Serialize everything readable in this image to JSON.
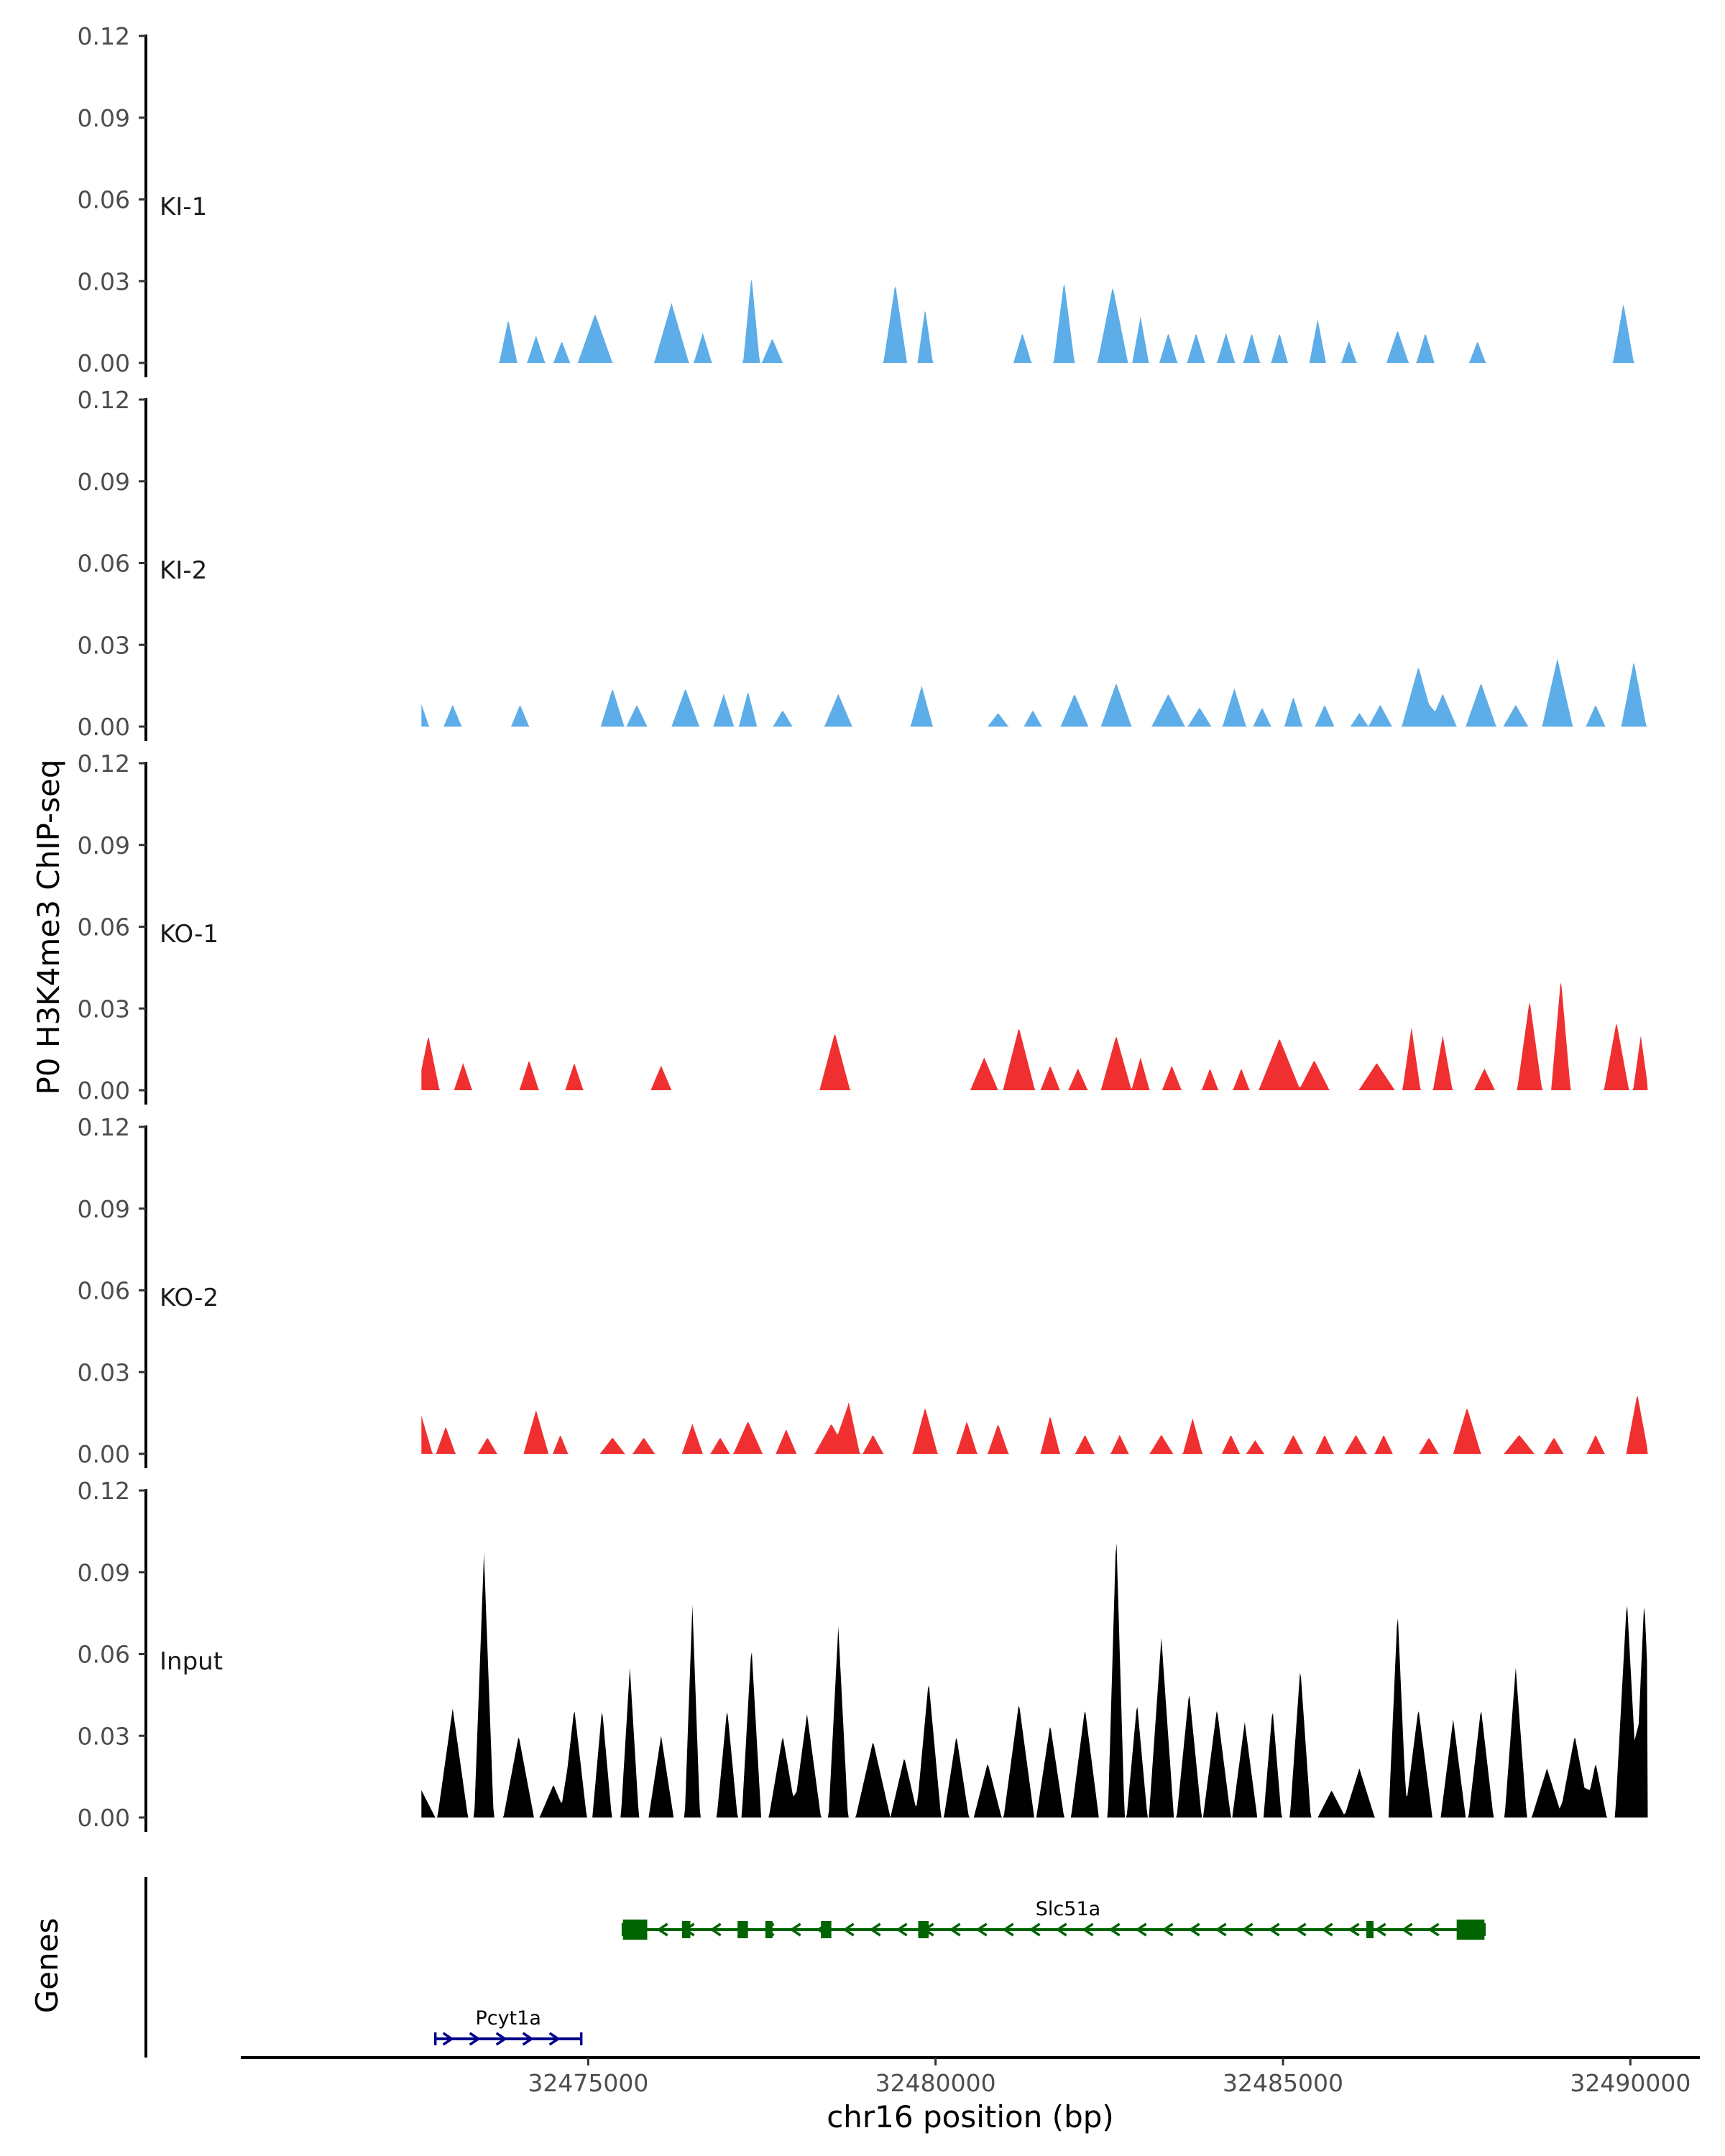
{
  "chart_data": {
    "type": "area",
    "title": "",
    "ylabel": "P0 H3K4me3 ChIP-seq",
    "xlabel": "chr16 position (bp)",
    "genes_label": "Genes",
    "xlim": [
      32470000,
      32491000
    ],
    "ylim": [
      0,
      0.12
    ],
    "y_ticks": [
      "0.00",
      "0.03",
      "0.06",
      "0.09",
      "0.12"
    ],
    "x_ticks": [
      {
        "label": "32475000",
        "value": 32475000
      },
      {
        "label": "32480000",
        "value": 32480000
      },
      {
        "label": "32485000",
        "value": 32485000
      },
      {
        "label": "32490000",
        "value": 32490000
      }
    ],
    "series": [
      {
        "name": "KI-1",
        "color": "#5dade8",
        "peaks": [
          [
            32473850,
            0.016,
            130
          ],
          [
            32474250,
            0.01,
            130
          ],
          [
            32474620,
            0.008,
            120
          ],
          [
            32475100,
            0.018,
            250
          ],
          [
            32476200,
            0.022,
            250
          ],
          [
            32476650,
            0.011,
            130
          ],
          [
            32477350,
            0.032,
            120
          ],
          [
            32477650,
            0.009,
            150
          ],
          [
            32479420,
            0.029,
            170
          ],
          [
            32479850,
            0.02,
            110
          ],
          [
            32481250,
            0.011,
            130
          ],
          [
            32481850,
            0.03,
            150
          ],
          [
            32482550,
            0.028,
            220
          ],
          [
            32482950,
            0.017,
            120
          ],
          [
            32483350,
            0.011,
            130
          ],
          [
            32483750,
            0.011,
            130
          ],
          [
            32484180,
            0.011,
            130
          ],
          [
            32484550,
            0.011,
            120
          ],
          [
            32484950,
            0.011,
            120
          ],
          [
            32485500,
            0.016,
            120
          ],
          [
            32485950,
            0.008,
            110
          ],
          [
            32486650,
            0.012,
            160
          ],
          [
            32487050,
            0.011,
            130
          ],
          [
            32487800,
            0.008,
            120
          ],
          [
            32489900,
            0.022,
            150
          ]
        ]
      },
      {
        "name": "KI-2",
        "color": "#5dade8",
        "peaks": [
          [
            32472550,
            0.012,
            160
          ],
          [
            32473050,
            0.008,
            130
          ],
          [
            32474020,
            0.008,
            130
          ],
          [
            32475350,
            0.014,
            170
          ],
          [
            32475700,
            0.008,
            150
          ],
          [
            32476400,
            0.014,
            200
          ],
          [
            32476950,
            0.012,
            150
          ],
          [
            32477300,
            0.013,
            130
          ],
          [
            32477800,
            0.006,
            140
          ],
          [
            32478600,
            0.012,
            200
          ],
          [
            32479800,
            0.015,
            160
          ],
          [
            32480900,
            0.005,
            150
          ],
          [
            32481400,
            0.006,
            130
          ],
          [
            32482000,
            0.012,
            200
          ],
          [
            32482600,
            0.016,
            220
          ],
          [
            32483350,
            0.012,
            240
          ],
          [
            32483800,
            0.007,
            170
          ],
          [
            32484300,
            0.014,
            170
          ],
          [
            32484700,
            0.007,
            130
          ],
          [
            32485150,
            0.011,
            130
          ],
          [
            32485600,
            0.008,
            140
          ],
          [
            32486100,
            0.005,
            130
          ],
          [
            32486400,
            0.008,
            170
          ],
          [
            32486950,
            0.022,
            240
          ],
          [
            32487300,
            0.012,
            200
          ],
          [
            32487850,
            0.016,
            220
          ],
          [
            32488350,
            0.008,
            180
          ],
          [
            32488950,
            0.025,
            220
          ],
          [
            32489500,
            0.008,
            140
          ],
          [
            32490050,
            0.024,
            180
          ]
        ]
      },
      {
        "name": "KO-1",
        "color": "#f03030",
        "peaks": [
          [
            32472700,
            0.02,
            160
          ],
          [
            32473200,
            0.01,
            130
          ],
          [
            32474150,
            0.011,
            140
          ],
          [
            32474800,
            0.01,
            130
          ],
          [
            32476050,
            0.009,
            150
          ],
          [
            32478550,
            0.021,
            220
          ],
          [
            32480700,
            0.012,
            200
          ],
          [
            32481200,
            0.023,
            230
          ],
          [
            32481650,
            0.009,
            140
          ],
          [
            32482050,
            0.008,
            140
          ],
          [
            32482600,
            0.02,
            220
          ],
          [
            32482950,
            0.012,
            130
          ],
          [
            32483400,
            0.009,
            140
          ],
          [
            32483950,
            0.008,
            120
          ],
          [
            32484400,
            0.008,
            120
          ],
          [
            32484950,
            0.019,
            300
          ],
          [
            32485450,
            0.011,
            220
          ],
          [
            32486350,
            0.01,
            260
          ],
          [
            32486850,
            0.023,
            130
          ],
          [
            32487300,
            0.02,
            140
          ],
          [
            32487900,
            0.008,
            150
          ],
          [
            32488550,
            0.033,
            180
          ],
          [
            32489000,
            0.041,
            140
          ],
          [
            32489800,
            0.025,
            180
          ],
          [
            32490150,
            0.02,
            110
          ]
        ]
      },
      {
        "name": "KO-2",
        "color": "#f03030",
        "peaks": [
          [
            32472600,
            0.014,
            160
          ],
          [
            32472950,
            0.01,
            140
          ],
          [
            32473550,
            0.006,
            140
          ],
          [
            32474250,
            0.016,
            180
          ],
          [
            32474600,
            0.007,
            110
          ],
          [
            32475350,
            0.006,
            180
          ],
          [
            32475800,
            0.006,
            160
          ],
          [
            32476500,
            0.011,
            150
          ],
          [
            32476900,
            0.006,
            140
          ],
          [
            32477300,
            0.012,
            210
          ],
          [
            32477850,
            0.009,
            150
          ],
          [
            32478500,
            0.011,
            240
          ],
          [
            32478750,
            0.019,
            160
          ],
          [
            32479100,
            0.007,
            150
          ],
          [
            32479850,
            0.017,
            180
          ],
          [
            32480450,
            0.012,
            150
          ],
          [
            32480900,
            0.011,
            150
          ],
          [
            32481650,
            0.014,
            140
          ],
          [
            32482150,
            0.007,
            140
          ],
          [
            32482650,
            0.007,
            130
          ],
          [
            32483250,
            0.007,
            170
          ],
          [
            32483700,
            0.013,
            140
          ],
          [
            32484250,
            0.007,
            130
          ],
          [
            32484600,
            0.005,
            130
          ],
          [
            32485150,
            0.007,
            140
          ],
          [
            32485600,
            0.007,
            130
          ],
          [
            32486050,
            0.007,
            160
          ],
          [
            32486450,
            0.007,
            130
          ],
          [
            32487100,
            0.006,
            140
          ],
          [
            32487650,
            0.017,
            200
          ],
          [
            32488400,
            0.007,
            220
          ],
          [
            32488900,
            0.006,
            140
          ],
          [
            32489500,
            0.007,
            130
          ],
          [
            32490100,
            0.022,
            160
          ]
        ]
      },
      {
        "name": "Input",
        "color": "#000000",
        "peaks": [
          [
            32472600,
            0.01,
            200
          ],
          [
            32473050,
            0.04,
            220
          ],
          [
            32473500,
            0.097,
            140
          ],
          [
            32474000,
            0.03,
            220
          ],
          [
            32474500,
            0.012,
            200
          ],
          [
            32474800,
            0.04,
            180
          ],
          [
            32475200,
            0.04,
            140
          ],
          [
            32475600,
            0.055,
            130
          ],
          [
            32476050,
            0.03,
            180
          ],
          [
            32476500,
            0.078,
            110
          ],
          [
            32477000,
            0.04,
            150
          ],
          [
            32477350,
            0.063,
            140
          ],
          [
            32477800,
            0.03,
            200
          ],
          [
            32478150,
            0.038,
            200
          ],
          [
            32478600,
            0.07,
            140
          ],
          [
            32479100,
            0.028,
            250
          ],
          [
            32479550,
            0.022,
            200
          ],
          [
            32479900,
            0.05,
            180
          ],
          [
            32480300,
            0.03,
            180
          ],
          [
            32480750,
            0.02,
            200
          ],
          [
            32481200,
            0.042,
            220
          ],
          [
            32481650,
            0.034,
            200
          ],
          [
            32482150,
            0.04,
            200
          ],
          [
            32482600,
            0.105,
            120
          ],
          [
            32482900,
            0.042,
            150
          ],
          [
            32483250,
            0.066,
            180
          ],
          [
            32483650,
            0.046,
            180
          ],
          [
            32484050,
            0.04,
            200
          ],
          [
            32484450,
            0.035,
            180
          ],
          [
            32484850,
            0.04,
            130
          ],
          [
            32485250,
            0.055,
            150
          ],
          [
            32485700,
            0.01,
            200
          ],
          [
            32486100,
            0.018,
            220
          ],
          [
            32486650,
            0.076,
            130
          ],
          [
            32486950,
            0.04,
            200
          ],
          [
            32487450,
            0.036,
            180
          ],
          [
            32487850,
            0.04,
            180
          ],
          [
            32488350,
            0.055,
            160
          ],
          [
            32488800,
            0.018,
            220
          ],
          [
            32489200,
            0.03,
            220
          ],
          [
            32489500,
            0.02,
            160
          ],
          [
            32489950,
            0.08,
            170
          ],
          [
            32490200,
            0.08,
            140
          ]
        ]
      }
    ],
    "genes": [
      {
        "name": "Slc51a",
        "strand": "-",
        "color": "#006400",
        "start": 32475500,
        "end": 32487900,
        "exons": [
          [
            32475500,
            32475850
          ],
          [
            32476350,
            32476470
          ],
          [
            32477150,
            32477300
          ],
          [
            32477550,
            32477650
          ],
          [
            32478350,
            32478500
          ],
          [
            32479750,
            32479900
          ],
          [
            32486200,
            32486270
          ],
          [
            32487500,
            32487900
          ]
        ]
      },
      {
        "name": "Pcyt1a",
        "strand": "+",
        "color": "#00008b",
        "start": 32472800,
        "end": 32474900,
        "exons": []
      }
    ]
  }
}
